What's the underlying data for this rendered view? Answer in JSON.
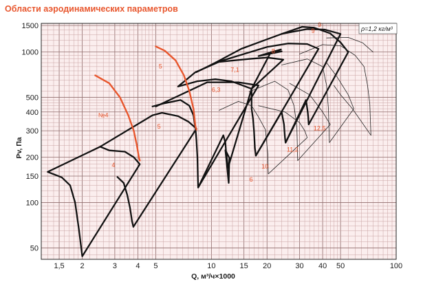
{
  "title": "Области аэродинамических параметров",
  "chart_data": {
    "type": "line",
    "xscale": "log",
    "yscale": "log",
    "xlabel": "Q, м³/ч×1000",
    "ylabel": "Pv, Па",
    "xlim": [
      1.2,
      100
    ],
    "ylim": [
      42,
      1550
    ],
    "grid": true,
    "x_ticks": [
      {
        "value": 1.5,
        "label": "1,5"
      },
      {
        "value": 2,
        "label": "2"
      },
      {
        "value": 3,
        "label": "3"
      },
      {
        "value": 4,
        "label": "4"
      },
      {
        "value": 5,
        "label": "5"
      },
      {
        "value": 10,
        "label": "10"
      },
      {
        "value": 15,
        "label": "15"
      },
      {
        "value": 20,
        "label": "20"
      },
      {
        "value": 30,
        "label": "30"
      },
      {
        "value": 40,
        "label": "40"
      },
      {
        "value": 50,
        "label": "50"
      },
      {
        "value": 100,
        "label": "100"
      }
    ],
    "y_ticks": [
      {
        "value": 50,
        "label": "50"
      },
      {
        "value": 100,
        "label": "100"
      },
      {
        "value": 150,
        "label": "150"
      },
      {
        "value": 200,
        "label": "200"
      },
      {
        "value": 300,
        "label": "300"
      },
      {
        "value": 400,
        "label": "400"
      },
      {
        "value": 500,
        "label": "500"
      },
      {
        "value": 1000,
        "label": "1000"
      },
      {
        "value": 1500,
        "label": "1500"
      }
    ],
    "density_label": "ρ=1,2 кг/м³",
    "colors": {
      "grid": "#c9a3a3",
      "grid_bg": "#fbeeee",
      "region": "#111111",
      "orange": "#e8562d",
      "thin": "#222222"
    },
    "labels": [
      {
        "text": "4",
        "x": 2.95,
        "y": 172
      },
      {
        "text": "№4",
        "x": 2.6,
        "y": 368
      },
      {
        "text": "5",
        "x": 5.2,
        "y": 310
      },
      {
        "text": "5",
        "x": 5.3,
        "y": 780
      },
      {
        "text": "6,3",
        "x": 10.6,
        "y": 545
      },
      {
        "text": "7,1",
        "x": 13.4,
        "y": 740
      },
      {
        "text": "8",
        "x": 21.6,
        "y": 980
      },
      {
        "text": "9",
        "x": 35.5,
        "y": 1340
      },
      {
        "text": "9",
        "x": 38.5,
        "y": 1470
      },
      {
        "text": "6",
        "x": 16.4,
        "y": 138
      },
      {
        "text": "10",
        "x": 19.5,
        "y": 168
      },
      {
        "text": "11,2",
        "x": 27.5,
        "y": 218
      },
      {
        "text": "12,5",
        "x": 38.5,
        "y": 302
      }
    ],
    "series": [
      {
        "style": "region",
        "points": [
          [
            1.3,
            160
          ],
          [
            1.55,
            147
          ],
          [
            1.72,
            130
          ],
          [
            1.83,
            100
          ],
          [
            1.92,
            66
          ],
          [
            2.0,
            44
          ],
          [
            4.1,
            180
          ],
          [
            3.8,
            200
          ],
          [
            3.4,
            218
          ],
          [
            2.8,
            222
          ],
          [
            2.5,
            235
          ],
          [
            1.3,
            160
          ]
        ]
      },
      {
        "style": "region",
        "points": [
          [
            3.1,
            148
          ],
          [
            3.35,
            135
          ],
          [
            3.5,
            113
          ],
          [
            3.63,
            92
          ],
          [
            3.72,
            75
          ],
          [
            3.78,
            69
          ],
          [
            8.3,
            310
          ],
          [
            7.5,
            345
          ],
          [
            6.6,
            375
          ],
          [
            5.4,
            395
          ],
          [
            4.8,
            380
          ],
          [
            2.5,
            235
          ]
        ]
      },
      {
        "style": "region",
        "points": [
          [
            4.8,
            435
          ],
          [
            5.5,
            455
          ],
          [
            6.8,
            480
          ],
          [
            7.6,
            440
          ],
          [
            8.0,
            380
          ],
          [
            8.2,
            310
          ],
          [
            8.3,
            260
          ],
          [
            8.4,
            200
          ],
          [
            8.45,
            147
          ],
          [
            8.48,
            126
          ],
          [
            18.0,
            600
          ],
          [
            14.0,
            630
          ],
          [
            9.5,
            630
          ],
          [
            5.0,
            435
          ]
        ]
      },
      {
        "style": "region",
        "points": [
          [
            6.6,
            590
          ],
          [
            8.4,
            640
          ],
          [
            10.5,
            660
          ],
          [
            12.8,
            640
          ],
          [
            16.5,
            570
          ],
          [
            24.5,
            890
          ],
          [
            20.0,
            920
          ],
          [
            16.0,
            900
          ],
          [
            11.0,
            860
          ],
          [
            8.2,
            735
          ],
          [
            6.6,
            590
          ]
        ]
      },
      {
        "style": "region",
        "points": [
          [
            12.3,
            170
          ],
          [
            12.6,
            195
          ],
          [
            11.9,
            223
          ],
          [
            12.4,
            135
          ],
          [
            12.5,
            198
          ]
        ]
      },
      {
        "style": "region",
        "points": [
          [
            8.48,
            126
          ],
          [
            11.6,
            280
          ],
          [
            11.9,
            250
          ],
          [
            12.0,
            220
          ],
          [
            12.3,
            170
          ],
          [
            16.5,
            570
          ],
          [
            16.5,
            420
          ],
          [
            16.8,
            360
          ],
          [
            17.0,
            300
          ],
          [
            17.2,
            230
          ],
          [
            17.4,
            205
          ],
          [
            38.0,
            1050
          ],
          [
            33.0,
            1130
          ],
          [
            26.0,
            1140
          ],
          [
            20.0,
            1080
          ],
          [
            10.5,
            850
          ],
          [
            8.3,
            735
          ]
        ]
      },
      {
        "style": "region",
        "points": [
          [
            17.4,
            205
          ],
          [
            24.0,
            400
          ],
          [
            24.7,
            330
          ],
          [
            25.0,
            270
          ],
          [
            25.2,
            250
          ],
          [
            50.0,
            1320
          ],
          [
            41.0,
            1410
          ],
          [
            33.0,
            1420
          ],
          [
            24.0,
            1320
          ],
          [
            14.5,
            1050
          ],
          [
            10.5,
            850
          ]
        ]
      },
      {
        "style": "region",
        "points": [
          [
            25.2,
            250
          ],
          [
            32.5,
            480
          ],
          [
            33.2,
            400
          ],
          [
            33.4,
            370
          ],
          [
            33.6,
            330
          ],
          [
            55.0,
            1000
          ],
          [
            50.0,
            1160
          ],
          [
            44.0,
            1330
          ],
          [
            36.0,
            1450
          ],
          [
            31.0,
            1470
          ],
          [
            24.0,
            1320
          ]
        ]
      },
      {
        "style": "region",
        "points": [
          [
            16.5,
            570
          ],
          [
            21.0,
            1000
          ],
          [
            24.0,
            1010
          ],
          [
            18.0,
            940
          ],
          [
            23.8,
            1040
          ]
        ]
      },
      {
        "style": "orange",
        "points": [
          [
            2.35,
            700
          ],
          [
            2.8,
            620
          ],
          [
            3.2,
            500
          ],
          [
            3.55,
            380
          ],
          [
            3.8,
            300
          ],
          [
            3.95,
            240
          ],
          [
            4.05,
            200
          ],
          [
            4.1,
            190
          ]
        ]
      },
      {
        "style": "orange",
        "points": [
          [
            5.0,
            1090
          ],
          [
            5.6,
            1020
          ],
          [
            6.4,
            880
          ],
          [
            7.1,
            700
          ],
          [
            7.6,
            550
          ],
          [
            8.0,
            420
          ],
          [
            8.2,
            320
          ],
          [
            8.3,
            305
          ]
        ]
      },
      {
        "style": "thin",
        "points": [
          [
            11.0,
            410
          ],
          [
            14.0,
            470
          ],
          [
            16.5,
            440
          ],
          [
            18.0,
            370
          ],
          [
            19.6,
            305
          ],
          [
            20.2,
            210
          ],
          [
            20.3,
            155
          ],
          [
            33.0,
            270
          ],
          [
            32.0,
            300
          ],
          [
            30.0,
            340
          ],
          [
            25.0,
            400
          ],
          [
            18.0,
            440
          ]
        ]
      },
      {
        "style": "thin",
        "points": [
          [
            16.0,
            545
          ],
          [
            22.0,
            640
          ],
          [
            26.0,
            560
          ],
          [
            28.0,
            440
          ],
          [
            29.0,
            320
          ],
          [
            29.3,
            190
          ],
          [
            44.0,
            330
          ],
          [
            40.0,
            400
          ],
          [
            34.0,
            520
          ],
          [
            26.5,
            620
          ]
        ]
      },
      {
        "style": "thin",
        "points": [
          [
            24.0,
            820
          ],
          [
            33.0,
            900
          ],
          [
            40.0,
            800
          ],
          [
            42.0,
            600
          ],
          [
            43.0,
            420
          ],
          [
            43.5,
            250
          ],
          [
            59.0,
            420
          ],
          [
            55.0,
            520
          ],
          [
            48.0,
            680
          ],
          [
            42.0,
            850
          ]
        ]
      },
      {
        "style": "thin",
        "points": [
          [
            30.0,
            970
          ],
          [
            40.0,
            1120
          ],
          [
            50.0,
            1100
          ],
          [
            60.0,
            950
          ],
          [
            67.0,
            800
          ],
          [
            70.0,
            600
          ],
          [
            72.0,
            450
          ],
          [
            73.0,
            280
          ]
        ]
      },
      {
        "style": "thin",
        "points": [
          [
            42.0,
            1240
          ],
          [
            55.0,
            1250
          ],
          [
            66.0,
            1150
          ],
          [
            75.0,
            1000
          ]
        ]
      },
      {
        "style": "thin",
        "points": [
          [
            73.0,
            280
          ],
          [
            58.0,
            420
          ],
          [
            50.0,
            520
          ],
          [
            46.0,
            600
          ]
        ]
      }
    ]
  }
}
